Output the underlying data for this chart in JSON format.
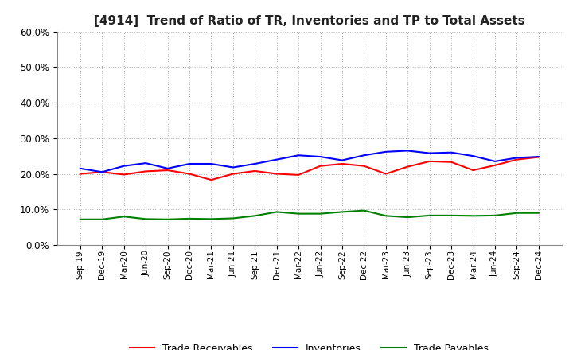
{
  "title": "[4914]  Trend of Ratio of TR, Inventories and TP to Total Assets",
  "x_labels": [
    "Sep-19",
    "Dec-19",
    "Mar-20",
    "Jun-20",
    "Sep-20",
    "Dec-20",
    "Mar-21",
    "Jun-21",
    "Sep-21",
    "Dec-21",
    "Mar-22",
    "Jun-22",
    "Sep-22",
    "Dec-22",
    "Mar-23",
    "Jun-23",
    "Sep-23",
    "Dec-23",
    "Mar-24",
    "Jun-24",
    "Sep-24",
    "Dec-24"
  ],
  "trade_receivables": [
    0.2,
    0.205,
    0.198,
    0.207,
    0.21,
    0.2,
    0.183,
    0.2,
    0.208,
    0.2,
    0.197,
    0.222,
    0.228,
    0.222,
    0.2,
    0.22,
    0.235,
    0.233,
    0.21,
    0.224,
    0.24,
    0.247
  ],
  "inventories": [
    0.215,
    0.205,
    0.222,
    0.23,
    0.215,
    0.228,
    0.228,
    0.218,
    0.228,
    0.24,
    0.252,
    0.248,
    0.238,
    0.252,
    0.262,
    0.265,
    0.258,
    0.26,
    0.25,
    0.235,
    0.245,
    0.248
  ],
  "trade_payables": [
    0.072,
    0.072,
    0.08,
    0.073,
    0.072,
    0.074,
    0.073,
    0.075,
    0.082,
    0.093,
    0.088,
    0.088,
    0.093,
    0.097,
    0.082,
    0.078,
    0.083,
    0.083,
    0.082,
    0.083,
    0.09,
    0.09
  ],
  "tr_color": "#FF0000",
  "inv_color": "#0000FF",
  "tp_color": "#008000",
  "ylim": [
    0.0,
    0.6
  ],
  "yticks": [
    0.0,
    0.1,
    0.2,
    0.3,
    0.4,
    0.5,
    0.6
  ],
  "background_color": "#FFFFFF",
  "grid_color": "#AAAAAA",
  "legend_labels": [
    "Trade Receivables",
    "Inventories",
    "Trade Payables"
  ]
}
